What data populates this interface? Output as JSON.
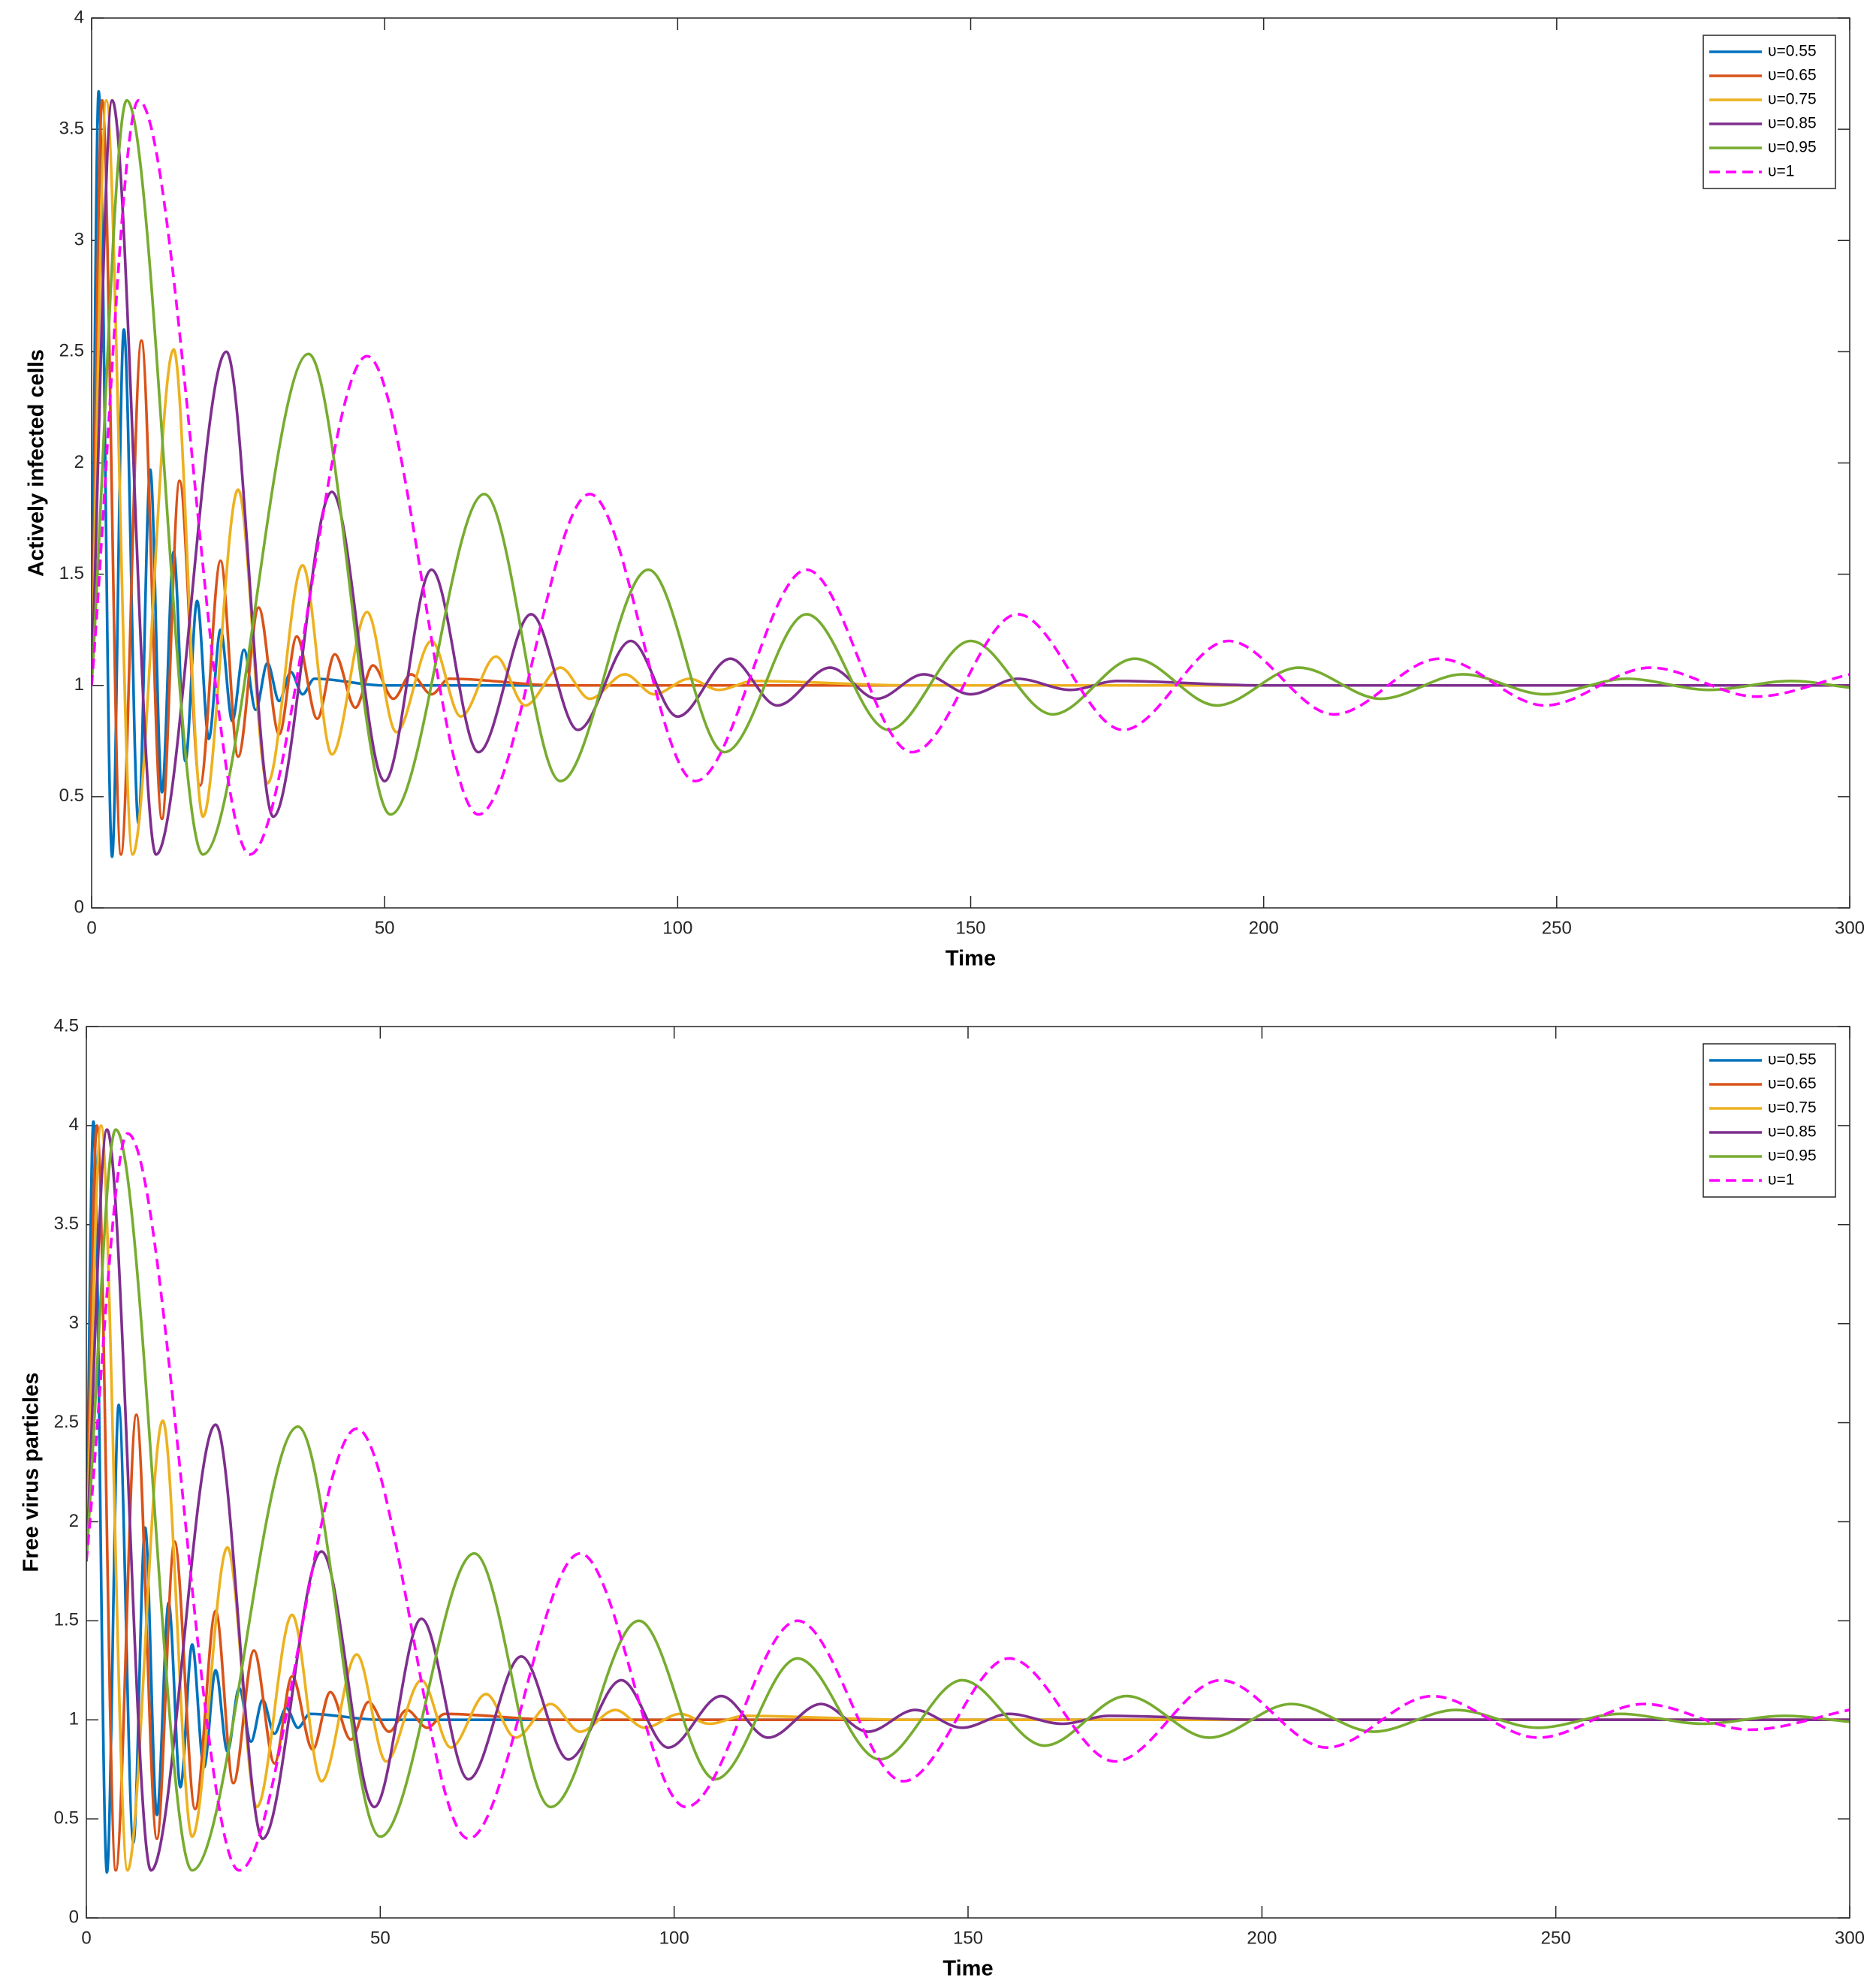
{
  "chart_data": [
    {
      "type": "line",
      "xlabel": "Time",
      "ylabel": "Actively infected cells",
      "xlim": [
        0,
        300
      ],
      "ylim": [
        0,
        4
      ],
      "xticks": [
        0,
        50,
        100,
        150,
        200,
        250,
        300
      ],
      "yticks": [
        0,
        0.5,
        1,
        1.5,
        2,
        2.5,
        3,
        3.5,
        4
      ],
      "legend": "upper right",
      "series": [
        {
          "name": "υ=0.55",
          "color": "#0072bd",
          "linestyle": "solid",
          "x": [
            0,
            1.2,
            3.5,
            5.5,
            8,
            10,
            12,
            14,
            16,
            18,
            20,
            22,
            24,
            26,
            28,
            30,
            32,
            34,
            36,
            38,
            50,
            300
          ],
          "values": [
            1,
            3.67,
            0.23,
            2.6,
            0.38,
            1.97,
            0.52,
            1.6,
            0.66,
            1.38,
            0.76,
            1.25,
            0.84,
            1.16,
            0.89,
            1.1,
            0.93,
            1.06,
            0.96,
            1.03,
            1,
            1
          ]
        },
        {
          "name": "υ=0.65",
          "color": "#d95319",
          "linestyle": "solid",
          "x": [
            0,
            1.8,
            5,
            8.5,
            12,
            15,
            18.5,
            22,
            25,
            28.5,
            32,
            35,
            38.5,
            41.5,
            45,
            48,
            51.5,
            54.5,
            58,
            61,
            80,
            300
          ],
          "values": [
            1,
            3.63,
            0.24,
            2.55,
            0.4,
            1.92,
            0.55,
            1.56,
            0.68,
            1.35,
            0.78,
            1.22,
            0.85,
            1.14,
            0.9,
            1.09,
            0.94,
            1.05,
            0.96,
            1.03,
            1,
            1
          ]
        },
        {
          "name": "υ=0.75",
          "color": "#edb120",
          "linestyle": "solid",
          "x": [
            0,
            2.5,
            7,
            14,
            19,
            25,
            30,
            36,
            41,
            47,
            52,
            58,
            63,
            69,
            74,
            80,
            85,
            91,
            96,
            102,
            107,
            113,
            140,
            300
          ],
          "values": [
            1,
            3.63,
            0.24,
            2.51,
            0.41,
            1.88,
            0.56,
            1.54,
            0.69,
            1.33,
            0.79,
            1.2,
            0.86,
            1.13,
            0.91,
            1.08,
            0.94,
            1.05,
            0.96,
            1.03,
            0.98,
            1.02,
            1,
            1
          ]
        },
        {
          "name": "υ=0.85",
          "color": "#7e2f8e",
          "linestyle": "solid",
          "x": [
            0,
            3.5,
            11,
            23,
            31,
            41,
            50,
            58,
            66,
            75,
            83,
            92,
            100,
            109,
            117,
            126,
            134,
            142,
            150,
            158,
            167,
            175,
            200,
            300
          ],
          "values": [
            1,
            3.63,
            0.24,
            2.5,
            0.41,
            1.87,
            0.57,
            1.52,
            0.7,
            1.32,
            0.8,
            1.2,
            0.86,
            1.12,
            0.91,
            1.08,
            0.94,
            1.05,
            0.96,
            1.03,
            0.98,
            1.02,
            1,
            1
          ]
        },
        {
          "name": "υ=0.95",
          "color": "#77ac30",
          "linestyle": "solid",
          "x": [
            0,
            6,
            19,
            37,
            51,
            67,
            80,
            95,
            108,
            122,
            136,
            150,
            164,
            178,
            192,
            206,
            220,
            234,
            248,
            262,
            276,
            290,
            300
          ],
          "values": [
            1,
            3.63,
            0.24,
            2.49,
            0.42,
            1.86,
            0.57,
            1.52,
            0.7,
            1.32,
            0.8,
            1.2,
            0.87,
            1.12,
            0.91,
            1.08,
            0.94,
            1.05,
            0.96,
            1.03,
            0.98,
            1.02,
            0.99
          ]
        },
        {
          "name": "υ=1",
          "color": "#ff00ff",
          "linestyle": "dashed",
          "x": [
            0,
            8,
            27,
            47,
            66,
            85,
            103,
            122,
            140,
            158,
            176,
            194,
            212,
            230,
            248,
            266,
            284,
            300
          ],
          "values": [
            1,
            3.63,
            0.24,
            2.48,
            0.42,
            1.86,
            0.57,
            1.52,
            0.7,
            1.32,
            0.8,
            1.2,
            0.87,
            1.12,
            0.91,
            1.08,
            0.95,
            1.05
          ]
        }
      ]
    },
    {
      "type": "line",
      "xlabel": "Time",
      "ylabel": "Free virus particles",
      "xlim": [
        0,
        300
      ],
      "ylim": [
        0,
        4.5
      ],
      "xticks": [
        0,
        50,
        100,
        150,
        200,
        250,
        300
      ],
      "yticks": [
        0,
        0.5,
        1,
        1.5,
        2,
        2.5,
        3,
        3.5,
        4,
        4.5
      ],
      "legend": "upper right",
      "series": [
        {
          "name": "υ=0.55",
          "color": "#0072bd",
          "linestyle": "solid",
          "x": [
            0,
            1.2,
            3.5,
            5.5,
            8,
            10,
            12,
            14,
            16,
            18,
            20,
            22,
            24,
            26,
            28,
            30,
            32,
            34,
            36,
            38,
            50,
            300
          ],
          "values": [
            1.8,
            4.02,
            0.23,
            2.59,
            0.38,
            1.97,
            0.52,
            1.59,
            0.66,
            1.38,
            0.76,
            1.25,
            0.84,
            1.16,
            0.89,
            1.1,
            0.93,
            1.06,
            0.96,
            1.03,
            1,
            1
          ]
        },
        {
          "name": "υ=0.65",
          "color": "#d95319",
          "linestyle": "solid",
          "x": [
            0,
            1.8,
            5,
            8.5,
            12,
            15,
            18.5,
            22,
            25,
            28.5,
            32,
            35,
            38.5,
            41.5,
            45,
            48,
            51.5,
            54.5,
            58,
            61,
            80,
            300
          ],
          "values": [
            1.8,
            4,
            0.24,
            2.54,
            0.4,
            1.9,
            0.55,
            1.55,
            0.68,
            1.35,
            0.78,
            1.22,
            0.85,
            1.14,
            0.9,
            1.09,
            0.94,
            1.05,
            0.96,
            1.03,
            1,
            1
          ]
        },
        {
          "name": "υ=0.75",
          "color": "#edb120",
          "linestyle": "solid",
          "x": [
            0,
            2.5,
            7,
            13,
            18,
            24,
            29,
            35,
            40,
            46,
            51,
            57,
            62,
            68,
            73,
            79,
            84,
            90,
            95,
            101,
            106,
            112,
            140,
            300
          ],
          "values": [
            1.8,
            4,
            0.24,
            2.51,
            0.41,
            1.87,
            0.56,
            1.53,
            0.69,
            1.33,
            0.79,
            1.2,
            0.86,
            1.13,
            0.91,
            1.08,
            0.94,
            1.05,
            0.96,
            1.03,
            0.98,
            1.02,
            1,
            1
          ]
        },
        {
          "name": "υ=0.85",
          "color": "#7e2f8e",
          "linestyle": "solid",
          "x": [
            0,
            3.5,
            11,
            22,
            30,
            40,
            49,
            57,
            65,
            74,
            82,
            91,
            99,
            108,
            116,
            125,
            133,
            141,
            149,
            157,
            166,
            174,
            200,
            300
          ],
          "values": [
            1.8,
            3.98,
            0.24,
            2.49,
            0.4,
            1.85,
            0.56,
            1.51,
            0.7,
            1.32,
            0.8,
            1.2,
            0.86,
            1.12,
            0.91,
            1.08,
            0.94,
            1.05,
            0.96,
            1.03,
            0.98,
            1.02,
            1,
            1
          ]
        },
        {
          "name": "υ=0.95",
          "color": "#77ac30",
          "linestyle": "solid",
          "x": [
            0,
            5,
            18,
            36,
            50,
            66,
            79,
            94,
            107,
            121,
            135,
            149,
            163,
            177,
            191,
            205,
            219,
            233,
            247,
            261,
            275,
            289,
            300
          ],
          "values": [
            1.8,
            3.98,
            0.24,
            2.48,
            0.41,
            1.84,
            0.56,
            1.5,
            0.7,
            1.31,
            0.8,
            1.2,
            0.87,
            1.12,
            0.91,
            1.08,
            0.94,
            1.05,
            0.96,
            1.03,
            0.98,
            1.02,
            0.99
          ]
        },
        {
          "name": "υ=1",
          "color": "#ff00ff",
          "linestyle": "dashed",
          "x": [
            0,
            7,
            26,
            46,
            65,
            84,
            102,
            121,
            139,
            157,
            175,
            193,
            211,
            229,
            247,
            265,
            283,
            300
          ],
          "values": [
            1.8,
            3.96,
            0.24,
            2.47,
            0.4,
            1.84,
            0.56,
            1.5,
            0.69,
            1.31,
            0.79,
            1.2,
            0.86,
            1.12,
            0.91,
            1.08,
            0.95,
            1.05
          ]
        }
      ]
    }
  ]
}
